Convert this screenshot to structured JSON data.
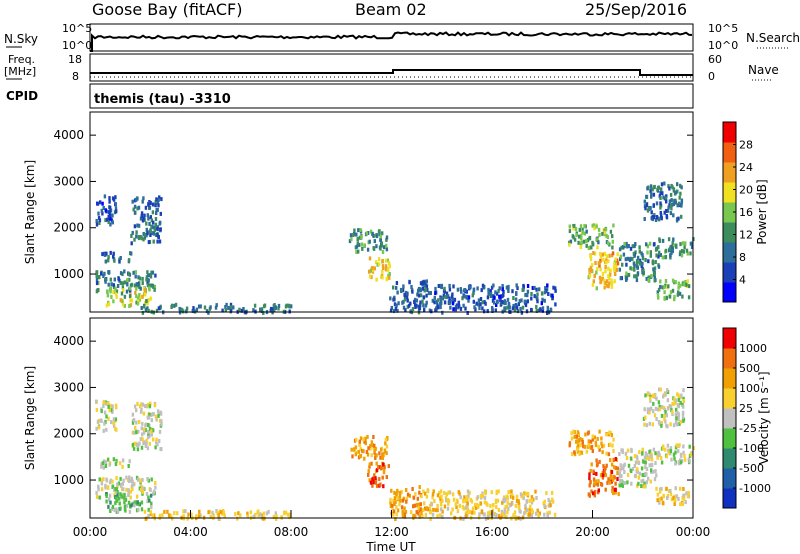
{
  "header": {
    "station": "Goose Bay (fitACF)",
    "beam": "Beam 02",
    "date": "25/Sep/2016"
  },
  "top_panels": {
    "nsky": {
      "label": "N.Sky",
      "ticks": [
        "10^5",
        "10^0"
      ],
      "right_label": "N.Search",
      "right_ticks": [
        "10^5",
        "10^0"
      ]
    },
    "freq": {
      "label_line1": "Freq.",
      "label_line2": "[MHz]",
      "ticks": [
        "18",
        "8"
      ],
      "right_label": "Nave",
      "right_ticks": [
        "60",
        "0"
      ]
    },
    "cpid": {
      "label": "CPID",
      "value": "themis (tau) -3310"
    }
  },
  "chart_data": [
    {
      "type": "heatmap",
      "panel": "power",
      "ylabel": "Slant Range [km]",
      "ylim": [
        180,
        4500
      ],
      "yticks": [
        "1000",
        "2000",
        "3000",
        "4000"
      ],
      "xlim": [
        0,
        24
      ],
      "colorbar": {
        "label": "Power [dB]",
        "ticks": [
          "28",
          "24",
          "20",
          "16",
          "12",
          "8",
          "4"
        ],
        "colors": [
          "#0000ff",
          "#1a3fb8",
          "#2d6e9a",
          "#3c8c5c",
          "#78c850",
          "#f0e020",
          "#f0a020",
          "#f06010",
          "#f00000"
        ]
      },
      "regions": [
        {
          "t": [
            0.4,
            1.6
          ],
          "r": [
            1300,
            1500
          ],
          "level": 8
        },
        {
          "t": [
            1.6,
            2.8
          ],
          "r": [
            1700,
            2700
          ],
          "level": 8
        },
        {
          "t": [
            0.2,
            1.0
          ],
          "r": [
            2100,
            2750
          ],
          "level": 6
        },
        {
          "t": [
            0.2,
            2.6
          ],
          "r": [
            650,
            1100
          ],
          "level": 10
        },
        {
          "t": [
            0.6,
            2.4
          ],
          "r": [
            350,
            750
          ],
          "level": 18
        },
        {
          "t": [
            2.0,
            8.0
          ],
          "r": [
            200,
            380
          ],
          "level": 9
        },
        {
          "t": [
            10.3,
            11.8
          ],
          "r": [
            1500,
            2000
          ],
          "level": 12
        },
        {
          "t": [
            11.0,
            11.9
          ],
          "r": [
            900,
            1400
          ],
          "level": 20
        },
        {
          "t": [
            11.9,
            13.5
          ],
          "r": [
            200,
            900
          ],
          "level": 7
        },
        {
          "t": [
            13.5,
            18.5
          ],
          "r": [
            200,
            800
          ],
          "level": 6
        },
        {
          "t": [
            19.0,
            20.8
          ],
          "r": [
            1600,
            2100
          ],
          "level": 14
        },
        {
          "t": [
            19.8,
            21.0
          ],
          "r": [
            700,
            1500
          ],
          "level": 22
        },
        {
          "t": [
            21.0,
            22.6
          ],
          "r": [
            900,
            1700
          ],
          "level": 10
        },
        {
          "t": [
            22.0,
            23.6
          ],
          "r": [
            2200,
            3000
          ],
          "level": 8
        },
        {
          "t": [
            22.6,
            24.0
          ],
          "r": [
            1400,
            1800
          ],
          "level": 11
        },
        {
          "t": [
            22.5,
            23.8
          ],
          "r": [
            500,
            900
          ],
          "level": 14
        }
      ]
    },
    {
      "type": "heatmap",
      "panel": "velocity",
      "ylabel": "Slant Range [km]",
      "xlabel": "Time UT",
      "ylim": [
        180,
        4500
      ],
      "yticks": [
        "1000",
        "2000",
        "3000",
        "4000"
      ],
      "xlim": [
        0,
        24
      ],
      "xticks": [
        "00:00",
        "04:00",
        "08:00",
        "12:00",
        "16:00",
        "20:00",
        "00:00"
      ],
      "colorbar": {
        "label": "Velocity [m s⁻¹]",
        "ticks": [
          "1000",
          "500",
          "100",
          "25",
          "-25",
          "-100",
          "-500",
          "-1000"
        ],
        "colors": [
          "#1030c0",
          "#2060a8",
          "#2f8a70",
          "#50c040",
          "#c0c0c0",
          "#f8d030",
          "#f0a000",
          "#f07010",
          "#f00000"
        ]
      },
      "regions": [
        {
          "t": [
            0.4,
            1.6
          ],
          "r": [
            1300,
            1500
          ],
          "level": 4
        },
        {
          "t": [
            1.6,
            2.8
          ],
          "r": [
            1700,
            2700
          ],
          "level": 4
        },
        {
          "t": [
            0.2,
            1.0
          ],
          "r": [
            2100,
            2750
          ],
          "level": 4
        },
        {
          "t": [
            0.2,
            2.6
          ],
          "r": [
            650,
            1100
          ],
          "level": 4
        },
        {
          "t": [
            0.6,
            2.4
          ],
          "r": [
            350,
            750
          ],
          "level": 3
        },
        {
          "t": [
            2.0,
            8.0
          ],
          "r": [
            200,
            380
          ],
          "level": 5
        },
        {
          "t": [
            10.3,
            11.8
          ],
          "r": [
            1500,
            2000
          ],
          "level": 6
        },
        {
          "t": [
            11.0,
            11.9
          ],
          "r": [
            900,
            1400
          ],
          "level": 7
        },
        {
          "t": [
            11.9,
            13.5
          ],
          "r": [
            200,
            900
          ],
          "level": 6
        },
        {
          "t": [
            13.5,
            18.5
          ],
          "r": [
            200,
            800
          ],
          "level": 5
        },
        {
          "t": [
            19.0,
            20.8
          ],
          "r": [
            1600,
            2100
          ],
          "level": 6
        },
        {
          "t": [
            19.8,
            21.0
          ],
          "r": [
            700,
            1500
          ],
          "level": 7
        },
        {
          "t": [
            21.0,
            22.6
          ],
          "r": [
            900,
            1700
          ],
          "level": 4
        },
        {
          "t": [
            22.0,
            23.6
          ],
          "r": [
            2200,
            3000
          ],
          "level": 4
        },
        {
          "t": [
            22.6,
            24.0
          ],
          "r": [
            1400,
            1800
          ],
          "level": 4
        },
        {
          "t": [
            22.5,
            23.8
          ],
          "r": [
            500,
            900
          ],
          "level": 5
        }
      ]
    }
  ]
}
